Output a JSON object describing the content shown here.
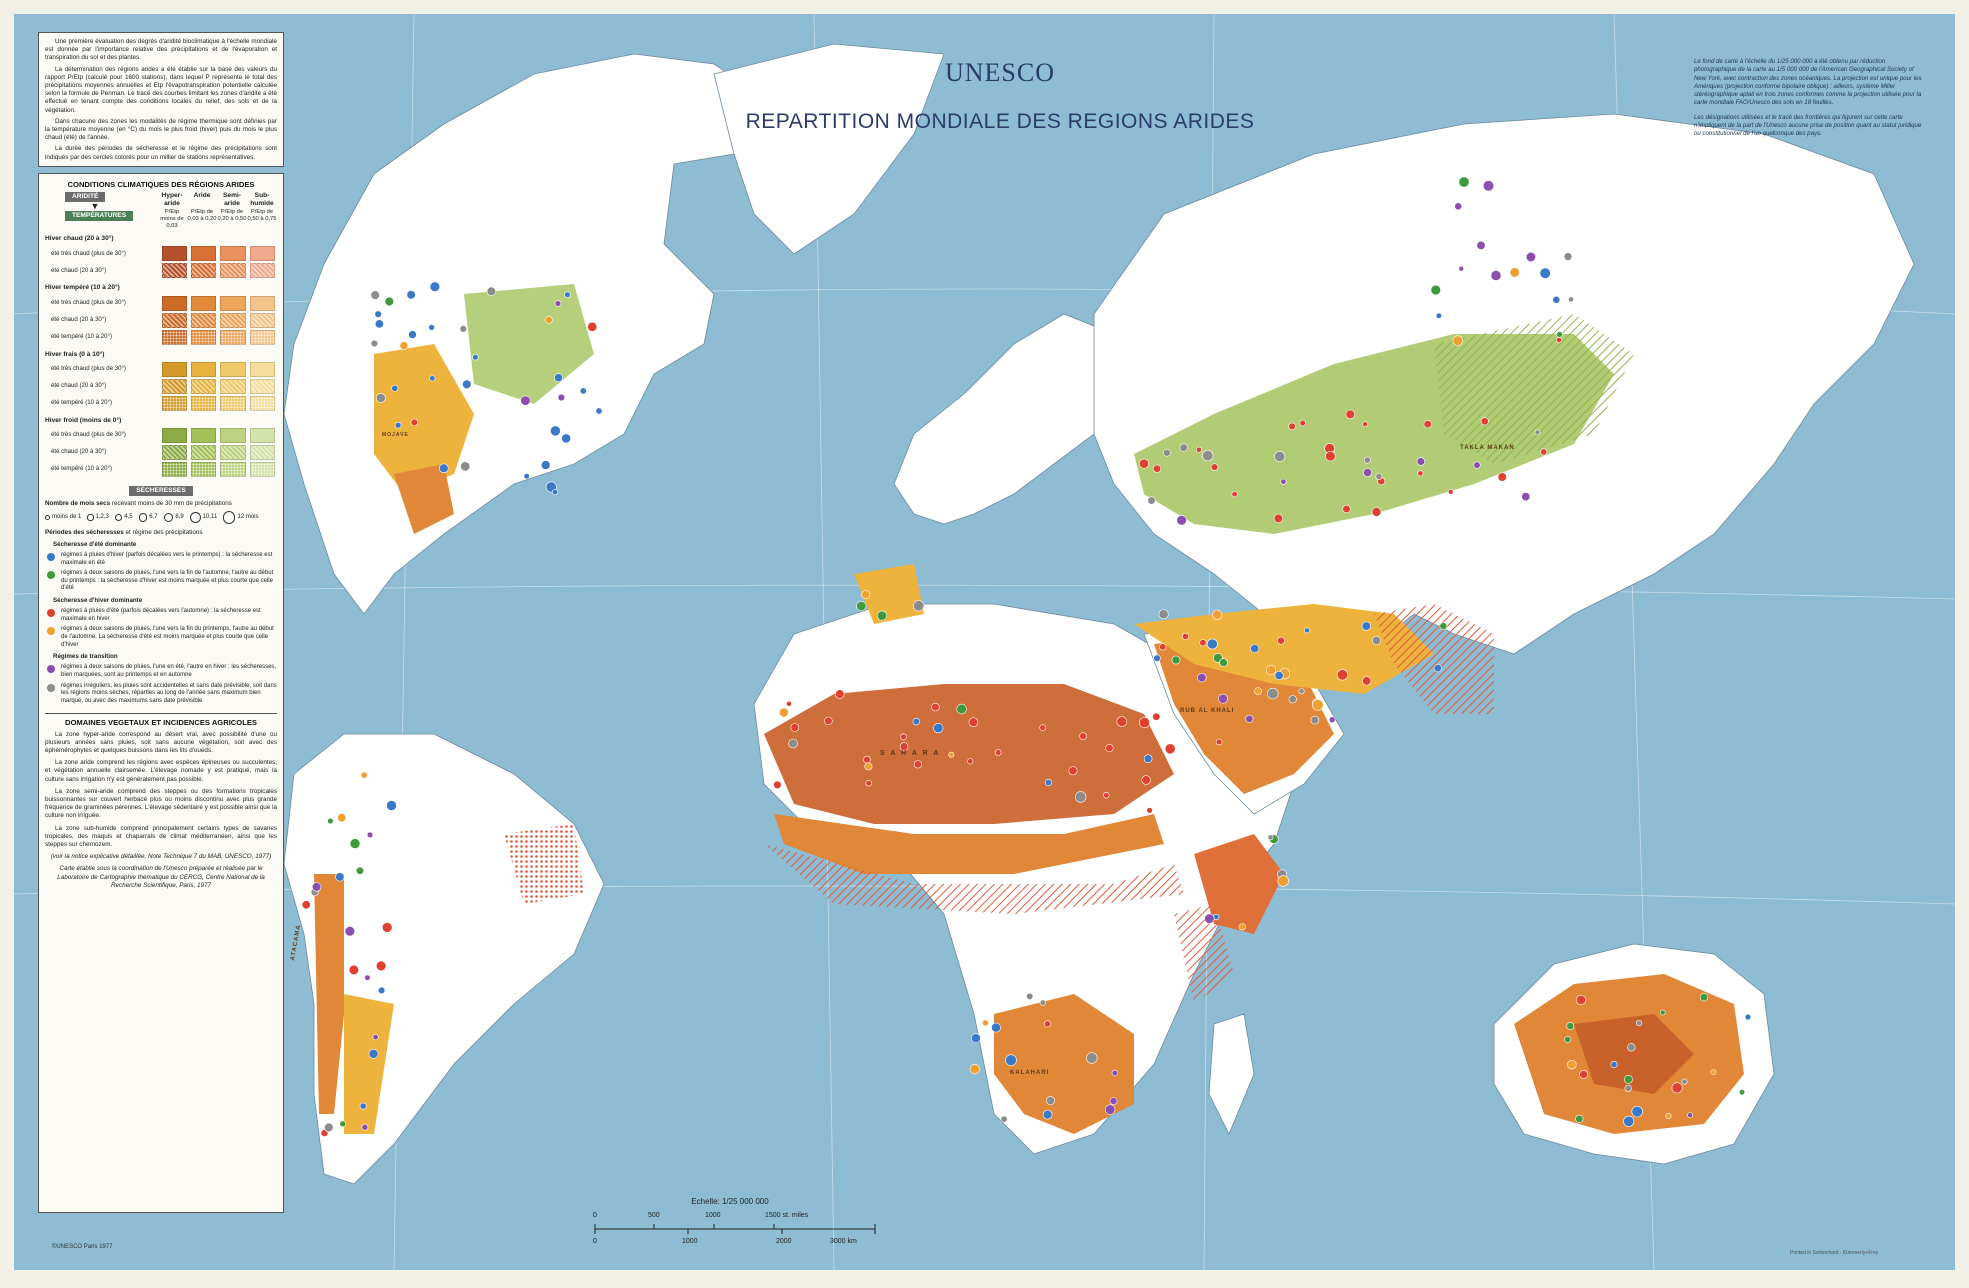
{
  "map": {
    "org": "UNESCO",
    "title": "REPARTITION MONDIALE DES REGIONS ARIDES",
    "colors": {
      "ocean": "#8ebcd3",
      "land": "#ffffff",
      "hyper_arid": "#c9622a",
      "arid": "#e08738",
      "semi_arid": "#eeb33c",
      "sub_humid": "#9bbd55",
      "cold_winter": "#a8c765",
      "hatch_red": "#e05a3a"
    },
    "region_labels": {
      "sahara": "S A H A R A",
      "rub_al_khali": "RUB AL KHALI",
      "kalahari": "KALAHARI",
      "atacama": "ATACAMA",
      "takla_makan": "TAKLA MAKAN",
      "mojave": "MOJAVE"
    },
    "copyright": "©UNESCO Paris 1977",
    "printer": "Printed in Switzerland - Kümmerly+Frey"
  },
  "legend": {
    "intro": [
      "Une première évaluation des degrés d'aridité bioclimatique à l'échelle mondiale est donnée par l'importance relative des précipitations et de l'évaporation et transpiration du sol et des plantes.",
      "La détermination des régions arides a été établie sur la base des valeurs du rapport P/Etp (calculé pour 1600 stations), dans lequel P représente le total des précipitations moyennes annuelles et Etp l'évapotranspiration potentielle calculée selon la formule de Penman. Le tracé des courbes limitant les zones d'aridité a été effectué en tenant compte des conditions locales du relief, des sols et de la végétation.",
      "Dans chacune des zones les modalités de régime thermique sont définies par la température moyenne (en °C) du mois le plus froid (hiver) puis du mois le plus chaud (été) de l'année.",
      "La durée des périodes de sécheresse et le régime des précipitations sont indiqués par des cercles colorés pour un millier de stations représentatives."
    ],
    "conditions_title": "CONDITIONS CLIMATIQUES DES RÉGIONS ARIDES",
    "aridity_tag": "ARIDITÉ",
    "temperature_tag": "TEMPÉRATURES",
    "columns": [
      "Hyper-aride",
      "Aride",
      "Semi-aride",
      "Sub-humide"
    ],
    "ratios": [
      "P/Etp moins de 0,03",
      "P/Etp de 0,03 à 0,20",
      "P/Etp de 0,20 à 0,50",
      "P/Etp de 0,50 à 0,75"
    ],
    "groups": [
      {
        "name": "Hiver chaud (20 à 30°)",
        "colors": [
          "#b5512d",
          "#d86f35",
          "#e9915a",
          "#f0a98a"
        ],
        "rows": [
          "été très chaud (plus de 30°)",
          "été chaud (20 à 30°)"
        ]
      },
      {
        "name": "Hiver tempéré (10 à 20°)",
        "colors": [
          "#cc6a28",
          "#e3893a",
          "#eda55a",
          "#f3c38a"
        ],
        "rows": [
          "été très chaud (plus de 30°)",
          "été chaud (20 à 30°)",
          "été tempéré (10 à 20°)"
        ]
      },
      {
        "name": "Hiver frais (0 à 10°)",
        "colors": [
          "#d39a2a",
          "#e6b43c",
          "#efc968",
          "#f4dd9a"
        ],
        "rows": [
          "été très chaud (plus de 30°)",
          "été chaud (20 à 30°)",
          "été tempéré (10 à 20°)"
        ]
      },
      {
        "name": "Hiver froid (moins de 0°)",
        "colors": [
          "#8daa45",
          "#a4c058",
          "#bcd27e",
          "#d3e2a8"
        ],
        "rows": [
          "été très chaud (plus de 30°)",
          "été chaud (20 à 30°)",
          "été tempéré (10 à 20°)"
        ]
      }
    ],
    "drought_tag": "SÉCHERESSES",
    "dry_months_title": "Nombre de mois secs",
    "dry_months_note": "recevant moins de 30 mm de précipitations",
    "dry_months": [
      "moins de 1",
      "1,2,3",
      "4,5",
      "6,7",
      "8,9",
      "10,11",
      "12 mois"
    ],
    "periods_title": "Périodes des sécheresses",
    "periods_note": "et régime des précipitations",
    "regimes": [
      {
        "heading": "Sécheresse d'été dominante",
        "color": "#3a78c8",
        "text": "régimes à pluies d'hiver (parfois décalées vers le printemps) : la sécheresse est maximale en été"
      },
      {
        "heading": "",
        "color": "#3f9a3c",
        "text": "régimes à deux saisons de pluies, l'une vers la fin de l'automne, l'autre au début du printemps : la sécheresse d'hiver est moins marquée et plus courte que celle d'été"
      },
      {
        "heading": "Sécheresse d'hiver dominante",
        "color": "#e0402f",
        "text": "régimes à pluies d'été (parfois décalées vers l'automne) : la sécheresse est maximale en hiver"
      },
      {
        "heading": "",
        "color": "#f0a030",
        "text": "régimes à deux saisons de pluies, l'une vers la fin du printemps, l'autre au début de l'automne. La sécheresse d'été est moins marquée et plus courte que celle d'hiver"
      },
      {
        "heading": "Régimes de transition",
        "color": "#8a4fb0",
        "text": "régimes à deux saisons de pluies, l'une en été, l'autre en hiver : les sécheresses, bien marquées, sont au printemps et en automne"
      },
      {
        "heading": "",
        "color": "#8c8c8c",
        "text": "régimes irréguliers, les pluies sont accidentelles et sans date prévisible, soit dans les régions moins sèches, réparties au long de l'année sans maximum bien marqué, ou avec des maximums sans date prévisible"
      }
    ],
    "domains_title": "DOMAINES VEGETAUX ET INCIDENCES AGRICOLES",
    "domains": [
      "La zone hyper-aride correspond au désert vrai, avec possibilité d'une ou plusieurs années sans pluies, soit sans aucune végétation, soit avec des éphémérophytes et quelques buissons dans les lits d'oueds.",
      "La zone aride comprend les régions avec espèces épineuses ou succulentes, et végétation annuelle clairsemée. L'élevage nomade y est pratiqué, mais la culture sans irrigation n'y est généralement pas possible.",
      "La zone semi-aride comprend des steppes ou des formations tropicales buissonnantes sur couvert herbacé plus ou moins discontinu avec plus grande fréquence de graminées pérennes. L'élevage sédentaire y est possible ainsi que la culture non irriguée.",
      "La zone sub-humide comprend principalement certains types de savanes tropicales, des maquis et chaparrals de climat méditerranéen, ainsi que les steppes sur chernozem."
    ],
    "doc_note": "(voir la notice explicative détaillée, Note Technique 7 du MAB, UNESCO, 1977)",
    "credit": "Carte établie sous la coordination de l'Unesco préparée et réalisée par le Laboratoire de Cartographie thématique du CERCG, Centre National de la Recherche Scientifique, Paris, 1977"
  },
  "note_right": [
    "Le fond de carte à l'échelle du 1/25 000 000 a été obtenu par réduction photographique de la carte au 1/5 000 000 de l'American Geographical Society of New York, avec contraction des zones océaniques. La projection est unique pour les Amériques (projection conforme bipolaire oblique) ; ailleurs, système Miller stéréographique aplati en trois zones conformes comme la projection utilisée pour la carte mondiale FAO/Unesco des sols en 18 feuilles.",
    "Les désignations utilisées et le tracé des frontières qui figurent sur cette carte n'impliquent de la part de l'Unesco aucune prise de position quant au statut juridique ou constitutionnel de l'un quelconque des pays."
  ],
  "scale": {
    "title": "Echelle: 1/25 000 000",
    "miles_labels": [
      "0",
      "500",
      "1000",
      "1500 st. miles"
    ],
    "km_labels": [
      "0",
      "1000",
      "2000",
      "3000 km"
    ]
  }
}
